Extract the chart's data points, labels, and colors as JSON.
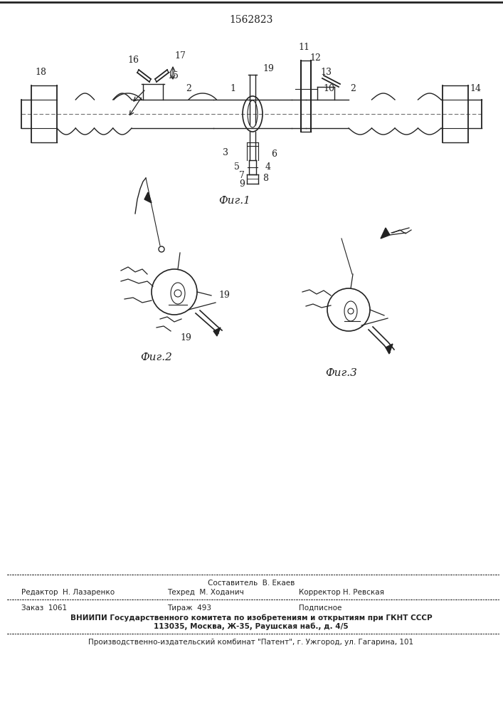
{
  "patent_number": "1562823",
  "fig1_label": "Фиг.1",
  "fig2_label": "Фиг.2",
  "fig3_label": "Фиг.3",
  "footer_line1": "Составитель  В. Екаев",
  "footer_line2_left": "Редактор  Н. Лазаренко",
  "footer_line2_mid": "Техред  М. Ходанич",
  "footer_line2_right": "Корректор Н. Ревская",
  "footer_line3_left": "Заказ  1061",
  "footer_line3_mid": "Тираж  493",
  "footer_line3_right": "Подписное",
  "footer_line4": "ВНИИПИ Государственного комитета по изобретениям и открытиям при ГКНТ СССР",
  "footer_line5": "113035, Москва, Ж-35, Раушская наб., д. 4/5",
  "footer_line6": "Производственно-издательский комбинат \"Патент\", г. Ужгород, ул. Гагарина, 101",
  "bg_color": "#ffffff",
  "line_color": "#222222",
  "text_color": "#222222"
}
